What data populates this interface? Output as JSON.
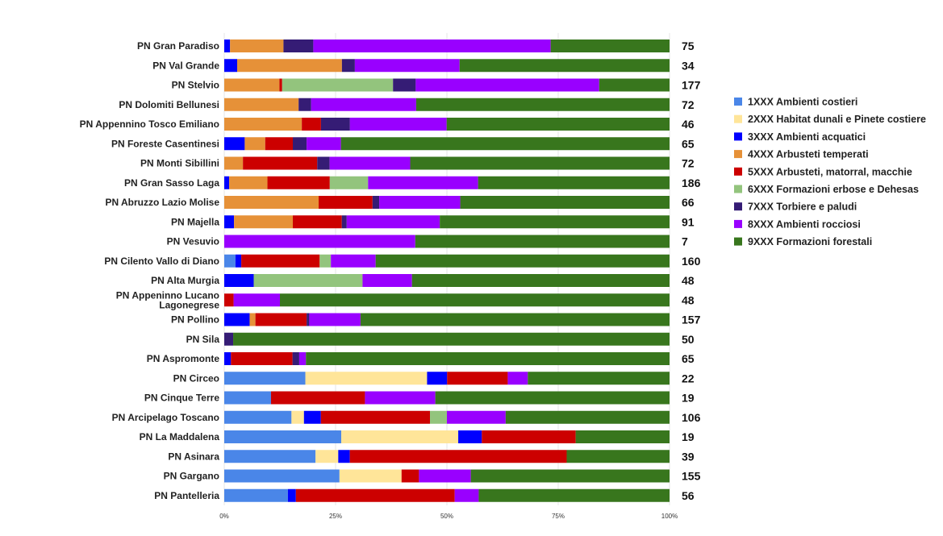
{
  "chart_data": {
    "type": "bar",
    "orientation": "horizontal",
    "stacked": "percent",
    "xlim": [
      0,
      100
    ],
    "x_ticks": [
      "0%",
      "25%",
      "50%",
      "75%",
      "100%"
    ],
    "legend_position": "right",
    "categories": [
      "PN Gran Paradiso",
      "PN Val Grande",
      "PN Stelvio",
      "PN Dolomiti Bellunesi",
      "PN Appennino Tosco Emiliano",
      "PN Foreste Casentinesi",
      "PN Monti Sibillini",
      "PN Gran Sasso Laga",
      "PN Abruzzo Lazio Molise",
      "PN Majella",
      "PN Vesuvio",
      "PN Cilento Vallo di Diano",
      "PN Alta Murgia",
      "PN Appeninno Lucano Lagonegrese",
      "PN Pollino",
      "PN Sila",
      "PN Aspromonte",
      "PN Circeo",
      "PN Cinque Terre",
      "PN Arcipelago Toscano",
      "PN La Maddalena",
      "PN Asinara",
      "PN Gargano",
      "PN Pantelleria"
    ],
    "counts": [
      "75",
      "34",
      "177",
      "72",
      "46",
      "65",
      "72",
      "186",
      "66",
      "91",
      "7",
      "160",
      "48",
      "48",
      "157",
      "50",
      "65",
      "22",
      "19",
      "106",
      "19",
      "39",
      "155",
      "56"
    ],
    "series": [
      {
        "name": "1XXX Ambienti costieri",
        "color": "#4a86e8",
        "values": [
          0,
          0,
          0,
          0,
          0,
          0,
          0,
          0,
          0,
          0,
          0,
          2.5,
          0,
          0,
          0,
          0,
          0,
          18.2,
          10.5,
          15.1,
          26.3,
          20.5,
          25.8,
          14.3
        ]
      },
      {
        "name": "2XXX Habitat dunali e Pinete costiere",
        "color": "#ffe599",
        "values": [
          0,
          0,
          0,
          0,
          0,
          0,
          0,
          0,
          0,
          0,
          0,
          0,
          0,
          0,
          0,
          0,
          0,
          27.3,
          0,
          2.8,
          26.3,
          5.1,
          13.9,
          0
        ]
      },
      {
        "name": "3XXX Ambienti acquatici",
        "color": "#0000ff",
        "values": [
          1.3,
          2.9,
          0,
          0,
          0,
          4.6,
          0,
          1.1,
          0,
          2.2,
          0,
          1.3,
          6.2,
          0,
          5.7,
          0,
          1.5,
          4.5,
          0,
          3.8,
          5.3,
          2.6,
          0,
          1.8
        ]
      },
      {
        "name": "4XXX Arbusteti temperati",
        "color": "#e69138",
        "values": [
          12.0,
          23.5,
          12.4,
          16.7,
          17.4,
          4.6,
          4.2,
          8.6,
          21.2,
          13.2,
          0,
          0,
          0,
          0,
          1.3,
          0,
          0,
          0,
          0,
          0,
          0,
          0,
          0,
          0
        ]
      },
      {
        "name": "5XXX Arbusteti, matorral, macchie",
        "color": "#cc0000",
        "values": [
          0,
          0,
          0.6,
          0,
          4.3,
          6.2,
          16.7,
          14.0,
          12.1,
          11.0,
          0,
          17.5,
          0,
          2.1,
          11.5,
          0,
          13.8,
          13.6,
          21.1,
          24.5,
          21.1,
          48.7,
          3.9,
          35.7
        ]
      },
      {
        "name": "6XXX Formazioni erbose e Dehesas",
        "color": "#93c47d",
        "values": [
          0,
          0,
          24.9,
          0,
          0,
          0,
          0,
          8.6,
          0,
          0,
          0,
          2.5,
          22.9,
          0,
          0,
          0,
          0,
          0,
          0,
          3.8,
          0,
          0,
          0,
          0
        ]
      },
      {
        "name": "7XXX Torbiere e paludi",
        "color": "#351c75",
        "values": [
          6.7,
          2.9,
          5.1,
          2.8,
          6.5,
          3.1,
          2.8,
          0,
          1.5,
          1.1,
          0,
          0,
          0,
          0,
          0.6,
          2.0,
          1.5,
          0,
          0,
          0,
          0,
          0,
          0,
          0
        ]
      },
      {
        "name": "8XXX Ambienti rocciosi",
        "color": "#9900ff",
        "values": [
          53.3,
          23.5,
          41.2,
          23.6,
          21.7,
          7.7,
          18.1,
          24.7,
          18.2,
          20.9,
          42.9,
          10.0,
          10.4,
          10.4,
          11.5,
          0,
          1.5,
          4.5,
          15.8,
          13.2,
          0,
          0,
          11.6,
          5.4
        ]
      },
      {
        "name": "9XXX Formazioni forestali",
        "color": "#38761d",
        "values": [
          26.7,
          47.1,
          15.8,
          56.9,
          50.0,
          73.8,
          58.3,
          43.0,
          47.0,
          51.6,
          57.1,
          65.6,
          54.2,
          87.5,
          69.4,
          98.0,
          81.5,
          31.8,
          52.6,
          36.8,
          21.1,
          23.1,
          44.5,
          42.9
        ]
      }
    ]
  }
}
